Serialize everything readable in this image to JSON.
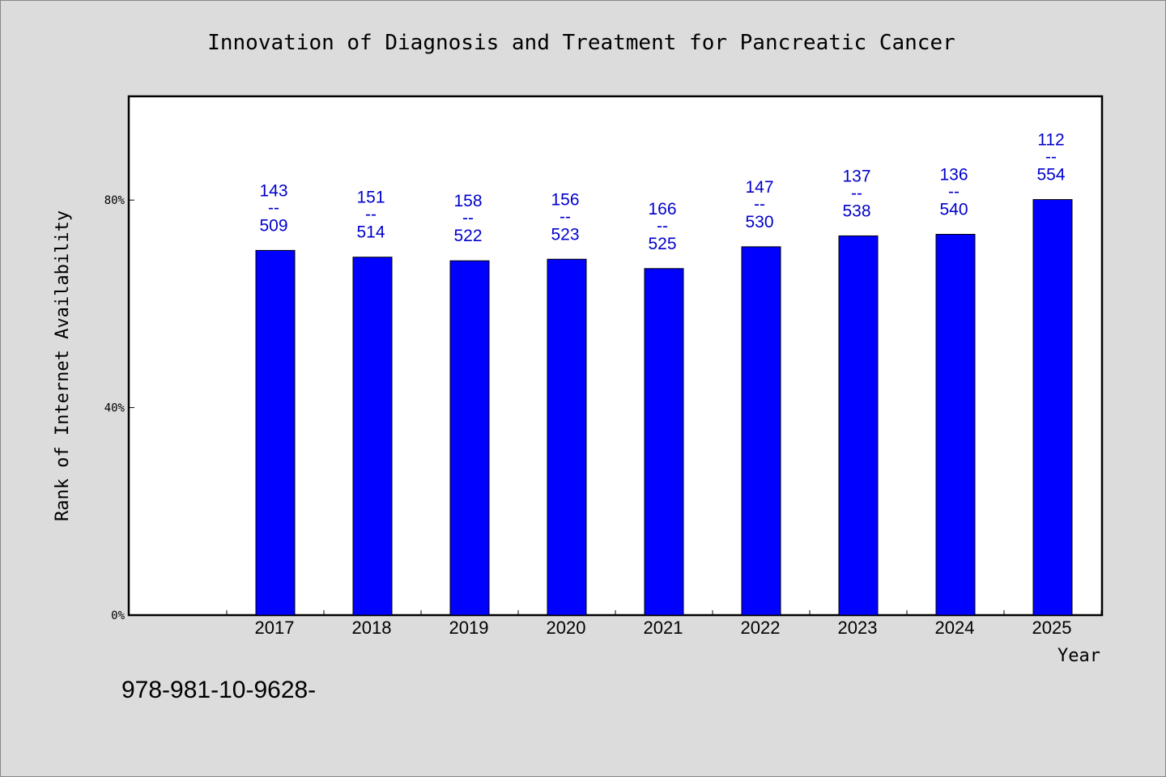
{
  "chart_data": {
    "type": "bar",
    "title": "Innovation of Diagnosis and Treatment for Pancreatic Cancer",
    "xlabel": "Year",
    "ylabel": "Rank of Internet Availability",
    "categories": [
      "2017",
      "2018",
      "2019",
      "2020",
      "2021",
      "2022",
      "2023",
      "2024",
      "2025"
    ],
    "values": [
      70.3,
      69.0,
      68.3,
      68.6,
      66.8,
      71.0,
      73.1,
      73.4,
      80.1
    ],
    "labels": [
      {
        "top": "143",
        "sep": "--",
        "bottom": "509"
      },
      {
        "top": "151",
        "sep": "--",
        "bottom": "514"
      },
      {
        "top": "158",
        "sep": "--",
        "bottom": "522"
      },
      {
        "top": "156",
        "sep": "--",
        "bottom": "523"
      },
      {
        "top": "166",
        "sep": "--",
        "bottom": "525"
      },
      {
        "top": "147",
        "sep": "--",
        "bottom": "530"
      },
      {
        "top": "137",
        "sep": "--",
        "bottom": "538"
      },
      {
        "top": "136",
        "sep": "--",
        "bottom": "540"
      },
      {
        "top": "112",
        "sep": "--",
        "bottom": "554"
      }
    ],
    "yticks": [
      {
        "value": 0,
        "label": "0%"
      },
      {
        "value": 40,
        "label": "40%"
      },
      {
        "value": 80,
        "label": "80%"
      }
    ],
    "ylim": [
      0,
      100
    ],
    "grid": false,
    "legend": "none",
    "bar_color": "#0000ff",
    "label_color": "#0000cc",
    "background": "#dcdcdc",
    "plot_background": "#ffffff"
  },
  "footer_text": "978-981-10-9628-"
}
